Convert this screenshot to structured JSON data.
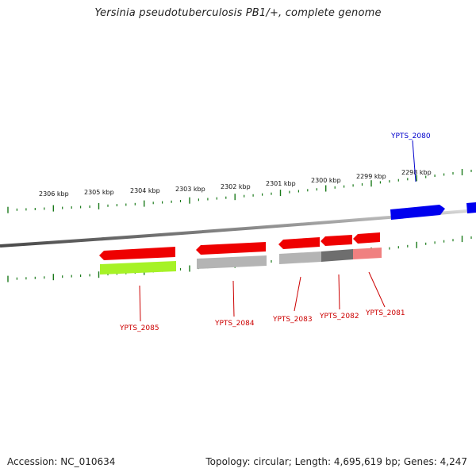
{
  "title": "Yersinia pseudotuberculosis PB1/+, complete genome",
  "footer": {
    "accession": "Accession: NC_010634",
    "topology": "Topology: circular; Length: 4,695,619 bp; Genes: 4,247"
  },
  "colors": {
    "forward_gene": "#0000ee",
    "reverse_gene": "#ee0000",
    "backbone": "#8c8c8c",
    "ticks": "#1a7a1a",
    "cog_lime": "#a6f226",
    "cog_gray": "#b4b4b4",
    "cog_darkgray": "#6e6e6e",
    "cog_pink": "#f08080",
    "label_forward": "#0000cc",
    "label_reverse": "#cc0000"
  },
  "tick_labels": [
    "2306 kbp",
    "2305 kbp",
    "2304 kbp",
    "2303 kbp",
    "2302 kbp",
    "2301 kbp",
    "2300 kbp",
    "2299 kbp",
    "2298 kbp"
  ],
  "genes": [
    {
      "name": "YPTS_2080",
      "strand": "forward"
    },
    {
      "name": "YPTS_2081",
      "strand": "reverse",
      "cog_color": "#f08080"
    },
    {
      "name": "YPTS_2082",
      "strand": "reverse",
      "cog_color": "#6e6e6e"
    },
    {
      "name": "YPTS_2083",
      "strand": "reverse",
      "cog_color": "#b4b4b4"
    },
    {
      "name": "YPTS_2084",
      "strand": "reverse",
      "cog_color": "#b4b4b4"
    },
    {
      "name": "YPTS_2085",
      "strand": "reverse",
      "cog_color": "#a6f226"
    }
  ]
}
